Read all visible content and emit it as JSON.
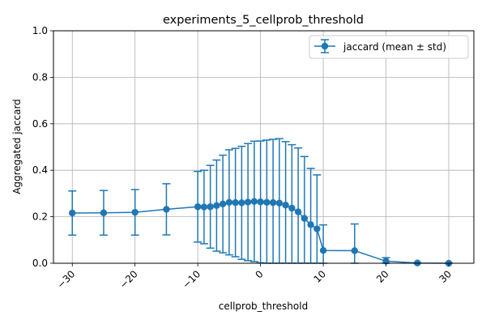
{
  "chart_data": {
    "type": "line",
    "title": "experiments_5_cellprob_threshold",
    "xlabel": "cellprob_threshold",
    "ylabel": "Aggregated jaccard",
    "xlim": [
      -33,
      34
    ],
    "ylim": [
      0,
      1
    ],
    "x_ticks": [
      -30,
      -20,
      -10,
      0,
      10,
      20,
      30
    ],
    "x_tick_labels": [
      "−30",
      "−20",
      "−10",
      "0",
      "10",
      "20",
      "30"
    ],
    "y_ticks": [
      0,
      0.2,
      0.4,
      0.6,
      0.8,
      1.0
    ],
    "y_tick_labels": [
      "0.0",
      "0.2",
      "0.4",
      "0.6",
      "0.8",
      "1.0"
    ],
    "grid": true,
    "legend_position": "top-right",
    "series": [
      {
        "name": "jaccard (mean ± std)",
        "color": "#1f77b4",
        "marker": "circle",
        "error_bars": true,
        "x": [
          -30,
          -25,
          -20,
          -15,
          -10,
          -9,
          -8,
          -7,
          -6,
          -5,
          -4,
          -3,
          -2,
          -1,
          0,
          1,
          2,
          3,
          4,
          5,
          6,
          7,
          8,
          9,
          10,
          15,
          20,
          25,
          30
        ],
        "y": [
          0.216,
          0.217,
          0.219,
          0.232,
          0.243,
          0.242,
          0.243,
          0.248,
          0.255,
          0.262,
          0.261,
          0.26,
          0.263,
          0.266,
          0.264,
          0.262,
          0.261,
          0.259,
          0.25,
          0.237,
          0.221,
          0.193,
          0.166,
          0.148,
          0.055,
          0.054,
          0.009,
          0.001,
          0.0
        ],
        "yerr": [
          0.095,
          0.096,
          0.098,
          0.11,
          0.152,
          0.158,
          0.178,
          0.196,
          0.21,
          0.226,
          0.233,
          0.243,
          0.252,
          0.259,
          0.262,
          0.268,
          0.272,
          0.277,
          0.273,
          0.273,
          0.275,
          0.266,
          0.242,
          0.232,
          0.11,
          0.115,
          0.015,
          0.002,
          0.001
        ]
      }
    ]
  }
}
